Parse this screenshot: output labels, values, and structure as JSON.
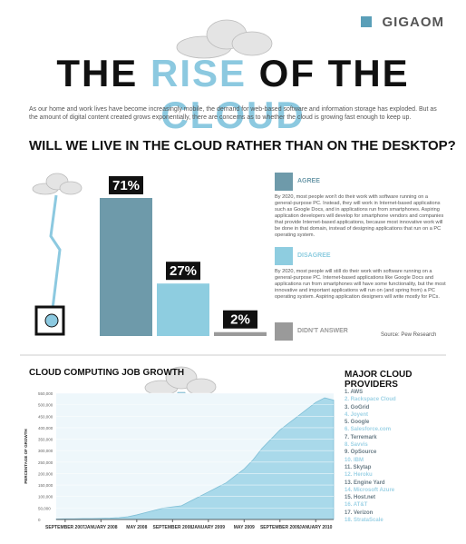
{
  "header": {
    "brand": "GIGAOM",
    "title": [
      "THE ",
      "RISE",
      " OF THE ",
      "CLOUD"
    ],
    "intro": "As our home and work lives have become increasingly mobile, the demand for web-based software and information storage has exploded. But as the amount of digital content created grows exponentially, there are concerns as to whether the cloud is growing fast enough to keep up."
  },
  "chart_data": [
    {
      "type": "bar",
      "title": "WILL WE LIVE IN THE CLOUD RATHER THAN ON THE DESKTOP?",
      "categories": [
        "AGREE",
        "DISAGREE",
        "DIDN'T ANSWER"
      ],
      "values": [
        71,
        27,
        2
      ],
      "value_labels": [
        "71%",
        "27%",
        "2%"
      ],
      "colors": [
        "#6e9aaa",
        "#8ecde0",
        "#9a9a9a"
      ],
      "descriptions": [
        "By 2020, most people won't do their work with software running on a general-purpose PC. Instead, they will work in Internet-based applications such as Google Docs, and in applications run from smartphones. Aspiring application developers will develop for smartphone vendors and companies that provide Internet-based applications, because most innovative work will be done in that domain, instead of designing applications that run on a PC operating system.",
        "By 2020, most people will still do their work with software running on a general-purpose PC. Internet-based applications like Google Docs and applications run from smartphones will have some functionality, but the most innovative and important applications will run on (and spring from) a PC operating system. Aspiring application designers will write mostly for PCs."
      ],
      "source": "Source: Pew Research"
    },
    {
      "type": "area",
      "title": "CLOUD COMPUTING JOB GROWTH",
      "ylabel": "PERCENTAGE OF GROWTH",
      "color": "#a9d9ea",
      "x": [
        "2007-08",
        "2007-09",
        "2007-10",
        "2007-11",
        "2007-12",
        "2008-01",
        "2008-02",
        "2008-03",
        "2008-04",
        "2008-05",
        "2008-06",
        "2008-07",
        "2008-08",
        "2008-09",
        "2008-10",
        "2008-11",
        "2008-12",
        "2009-01",
        "2009-02",
        "2009-03",
        "2009-04",
        "2009-05",
        "2009-06",
        "2009-07",
        "2009-08",
        "2009-09",
        "2009-10",
        "2009-11",
        "2009-12",
        "2010-01",
        "2010-02",
        "2010-03"
      ],
      "values": [
        2000,
        3000,
        3000,
        4000,
        4000,
        5000,
        6000,
        8000,
        12000,
        20000,
        30000,
        40000,
        50000,
        55000,
        60000,
        80000,
        100000,
        120000,
        140000,
        160000,
        190000,
        220000,
        260000,
        310000,
        350000,
        390000,
        420000,
        450000,
        480000,
        510000,
        530000,
        520000
      ],
      "xticks": [
        {
          "value": "2007-09",
          "label": "SEPTEMBER 2007"
        },
        {
          "value": "2008-01",
          "label": "JANUARY 2008"
        },
        {
          "value": "2008-05",
          "label": "MAY 2008"
        },
        {
          "value": "2008-09",
          "label": "SEPTEMBER 2008"
        },
        {
          "value": "2009-01",
          "label": "JANUARY 2009"
        },
        {
          "value": "2009-05",
          "label": "MAY 2009"
        },
        {
          "value": "2009-09",
          "label": "SEPTEMBER 2009"
        },
        {
          "value": "2010-01",
          "label": "JANUARY 2010"
        }
      ],
      "ylim": [
        0,
        550000
      ],
      "yticks": [
        0,
        {
          "value": 50000,
          "label": "50,000"
        },
        {
          "value": 100000,
          "label": "100,000"
        },
        {
          "value": 150000,
          "label": "150,000"
        },
        {
          "value": 200000,
          "label": "200,000"
        },
        {
          "value": 250000,
          "label": "250,000"
        },
        {
          "value": 300000,
          "label": "300,000"
        },
        {
          "value": 350000,
          "label": "350,000"
        },
        {
          "value": 400000,
          "label": "400,000"
        },
        {
          "value": 450000,
          "label": "450,000"
        },
        {
          "value": 500000,
          "label": "500,000"
        },
        {
          "value": 550000,
          "label": "550,000"
        }
      ],
      "grid": true
    }
  ],
  "providers": {
    "title": "MAJOR CLOUD PROVIDERS",
    "items": [
      "1. AWS",
      "2. Rackspace Cloud",
      "3. GoGrid",
      "4. Joyent",
      "5. Google",
      "6. Salesforce.com",
      "7. Terremark",
      "8. Savvis",
      "9. OpSource",
      "10. IBM",
      "11. Skytap",
      "12. Heroku",
      "13. Engine Yard",
      "14. Microsoft Azure",
      "15. Host.net",
      "16. AT&T",
      "17. Verizon",
      "18. StrataScale"
    ]
  }
}
